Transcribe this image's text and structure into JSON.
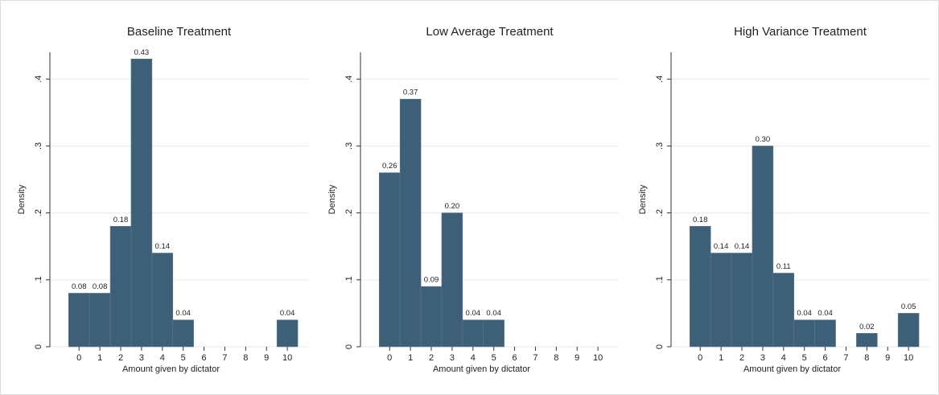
{
  "chart_data": [
    {
      "type": "histogram",
      "title": "Baseline Treatment",
      "x_label": "Amount given by dictator",
      "y_label": "Density",
      "bins": [
        -0.5,
        0.5,
        1.5,
        2.5,
        3.5,
        4.5,
        5.5,
        6.5,
        7.5,
        8.5,
        9.5,
        10.5
      ],
      "values": [
        0.08,
        0.08,
        0.18,
        0.43,
        0.14,
        0.04,
        0,
        0,
        0,
        0,
        0.04
      ],
      "value_labels": [
        "0.08",
        "0.08",
        "0.18",
        "0.43",
        "0.14",
        "0.04",
        null,
        null,
        null,
        null,
        "0.04"
      ],
      "color": "#3e5f78",
      "xlim": [
        -1.4,
        11
      ],
      "xticks": [
        0,
        1,
        2,
        3,
        4,
        5,
        6,
        7,
        8,
        9,
        10
      ],
      "ylim": [
        0,
        0.44
      ],
      "yticks": [
        0,
        {
          "value": 0.1,
          "label": ".1"
        },
        {
          "value": 0.2,
          "label": ".2"
        },
        {
          "value": 0.3,
          "label": ".3"
        },
        {
          "value": 0.4,
          "label": ".4"
        }
      ],
      "grid": true
    },
    {
      "type": "histogram",
      "title": "Low Average Treatment",
      "x_label": "Amount given by dictator",
      "y_label": "Density",
      "bins": [
        -0.5,
        0.5,
        1.5,
        2.5,
        3.5,
        4.5,
        5.5,
        6.5,
        7.5,
        8.5,
        9.5,
        10.5
      ],
      "values": [
        0.26,
        0.37,
        0.09,
        0.2,
        0.04,
        0.04,
        0,
        0,
        0,
        0,
        0
      ],
      "value_labels": [
        "0.26",
        "0.37",
        "0.09",
        "0.20",
        "0.04",
        "0.04",
        null,
        null,
        null,
        null,
        null
      ],
      "color": "#3e5f78",
      "xlim": [
        -1.4,
        11
      ],
      "xticks": [
        0,
        1,
        2,
        3,
        4,
        5,
        6,
        7,
        8,
        9,
        10
      ],
      "ylim": [
        0,
        0.44
      ],
      "yticks": [
        0,
        {
          "value": 0.1,
          "label": ".1"
        },
        {
          "value": 0.2,
          "label": ".2"
        },
        {
          "value": 0.3,
          "label": ".3"
        },
        {
          "value": 0.4,
          "label": ".4"
        }
      ],
      "grid": true
    },
    {
      "type": "histogram",
      "title": "High Variance Treatment",
      "x_label": "Amount given by dictator",
      "y_label": "Density",
      "bins": [
        -0.5,
        0.5,
        1.5,
        2.5,
        3.5,
        4.5,
        5.5,
        6.5,
        7.5,
        8.5,
        9.5,
        10.5
      ],
      "values": [
        0.18,
        0.14,
        0.14,
        0.3,
        0.11,
        0.04,
        0.04,
        0,
        0.02,
        0,
        0.05
      ],
      "value_labels": [
        "0.18",
        "0.14",
        "0.14",
        "0.30",
        "0.11",
        "0.04",
        "0.04",
        null,
        "0.02",
        null,
        "0.05"
      ],
      "color": "#3e5f78",
      "xlim": [
        -1.4,
        11
      ],
      "xticks": [
        0,
        1,
        2,
        3,
        4,
        5,
        6,
        7,
        8,
        9,
        10
      ],
      "ylim": [
        0,
        0.44
      ],
      "yticks": [
        0,
        {
          "value": 0.1,
          "label": ".1"
        },
        {
          "value": 0.2,
          "label": ".2"
        },
        {
          "value": 0.3,
          "label": ".3"
        },
        {
          "value": 0.4,
          "label": ".4"
        }
      ],
      "grid": true
    }
  ]
}
